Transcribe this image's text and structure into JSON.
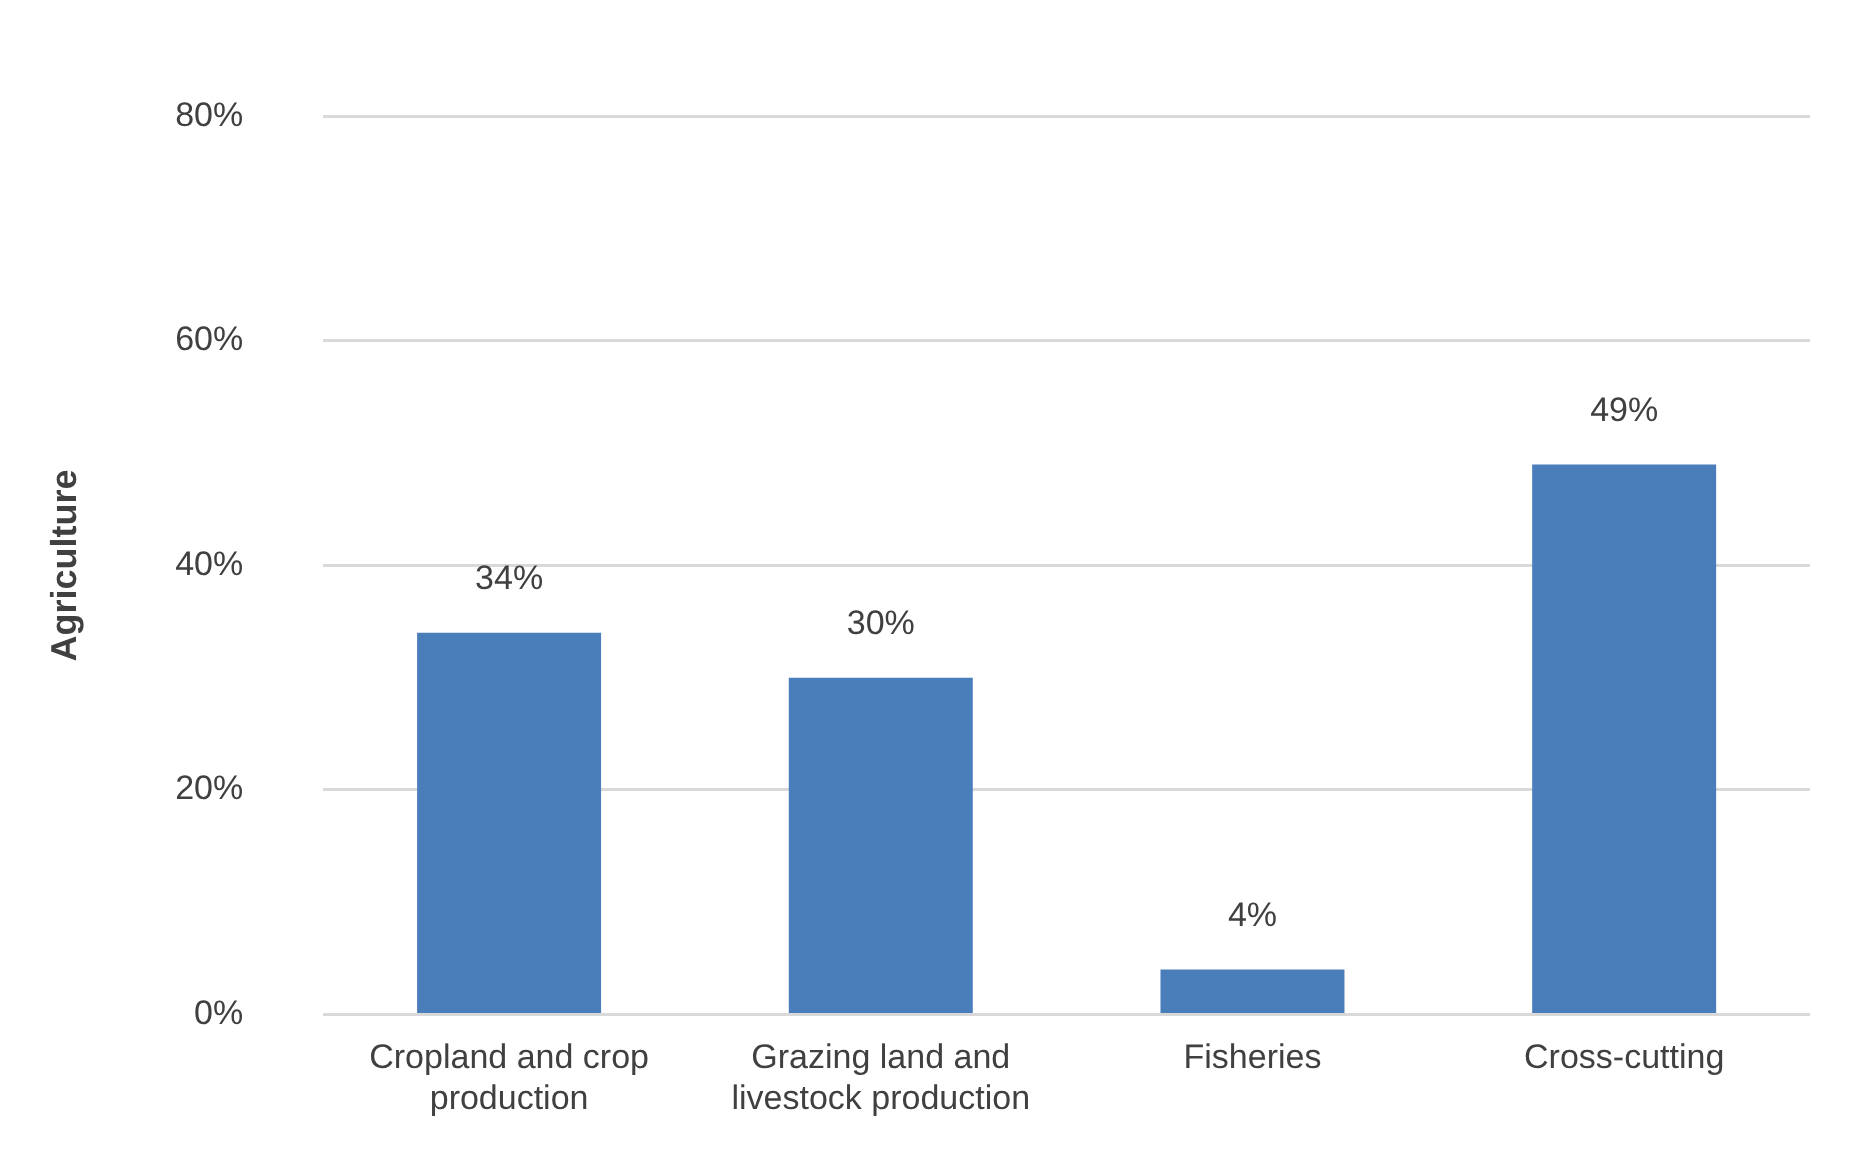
{
  "chart_data": {
    "type": "bar",
    "ylabel": "Agriculture",
    "categories": [
      "Cropland and crop production",
      "Grazing land and livestock production",
      "Fisheries",
      "Cross-cutting"
    ],
    "values": [
      34,
      30,
      4,
      49
    ],
    "color": "#4a7ebb",
    "value_labels": [
      "34%",
      "30%",
      "4%",
      "49%"
    ],
    "ylim": [
      0,
      80
    ],
    "yticks": [
      {
        "value": 0,
        "label": "0%"
      },
      {
        "value": 20,
        "label": "20%"
      },
      {
        "value": 40,
        "label": "40%"
      },
      {
        "value": 60,
        "label": "60%"
      },
      {
        "value": 80,
        "label": "80%"
      }
    ],
    "grid": "y",
    "legend": false
  }
}
